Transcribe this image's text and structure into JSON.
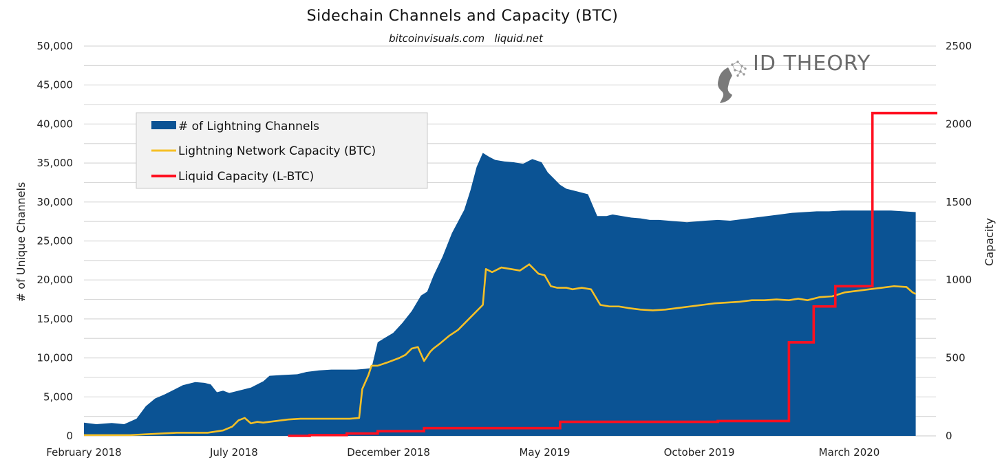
{
  "chart_data": {
    "type": "area",
    "title": "Sidechain Channels and Capacity (BTC)",
    "subtitle": "bitcoinvisuals.com   liquid.net",
    "watermark": "ID THEORY",
    "ylabel": "# of Unique Channels",
    "y2label": "Capacity",
    "ylim": [
      0,
      50000
    ],
    "y2lim": [
      0,
      2500
    ],
    "grid": true,
    "legend_placement": "top-left",
    "x_axis": {
      "unit": "months since February 2018",
      "range": [
        0,
        28.4
      ],
      "ticks": [
        {
          "label": "February 2018",
          "value": 0
        },
        {
          "label": "July 2018",
          "value": 4.85
        },
        {
          "label": "December 2018",
          "value": 9.85
        },
        {
          "label": "May 2019",
          "value": 14.9
        },
        {
          "label": "October 2019",
          "value": 19.9
        },
        {
          "label": "March 2020",
          "value": 24.75
        }
      ]
    },
    "y_ticks": [
      "0",
      "5,000",
      "10,000",
      "15,000",
      "20,000",
      "25,000",
      "30,000",
      "35,000",
      "40,000",
      "45,000",
      "50,000"
    ],
    "y_tick_values": [
      0,
      5000,
      10000,
      15000,
      20000,
      25000,
      30000,
      35000,
      40000,
      45000,
      50000
    ],
    "y2_ticks": [
      "0",
      "500",
      "1000",
      "1500",
      "2000",
      "2500"
    ],
    "y2_tick_values": [
      0,
      500,
      1000,
      1500,
      2000,
      2500
    ],
    "colors": {
      "channels": "#0b5394",
      "ln_capacity": "#f6c026",
      "liquid_capacity": "#ff1020",
      "grid": "#d9d9d9"
    },
    "series": [
      {
        "name": "# of Lightning Channels",
        "axis": "left",
        "type": "area",
        "x": [
          0,
          0.4,
          0.9,
          1.3,
          1.7,
          2.0,
          2.3,
          2.6,
          2.9,
          3.2,
          3.6,
          3.9,
          4.1,
          4.3,
          4.5,
          4.7,
          5.0,
          5.4,
          5.8,
          6.0,
          6.4,
          6.9,
          7.2,
          7.6,
          8.0,
          8.4,
          8.8,
          9.1,
          9.3,
          9.5,
          9.7,
          10.0,
          10.3,
          10.6,
          10.9,
          11.1,
          11.3,
          11.6,
          11.9,
          12.1,
          12.3,
          12.5,
          12.7,
          12.9,
          13.1,
          13.3,
          13.6,
          13.9,
          14.2,
          14.5,
          14.8,
          15.0,
          15.2,
          15.4,
          15.6,
          15.8,
          16.0,
          16.3,
          16.6,
          16.9,
          17.1,
          17.4,
          17.7,
          18.0,
          18.3,
          18.6,
          18.9,
          19.2,
          19.5,
          19.8,
          20.1,
          20.5,
          20.9,
          21.3,
          21.7,
          22.1,
          22.5,
          22.9,
          23.3,
          23.7,
          24.1,
          24.5,
          24.9,
          25.3,
          25.7,
          26.1,
          26.5,
          26.9
        ],
        "values": [
          1700,
          1500,
          1650,
          1500,
          2200,
          3800,
          4800,
          5300,
          5900,
          6500,
          6900,
          6800,
          6600,
          5600,
          5800,
          5500,
          5800,
          6200,
          7000,
          7700,
          7800,
          7900,
          8200,
          8400,
          8500,
          8500,
          8500,
          8600,
          8700,
          12000,
          12500,
          13200,
          14500,
          16000,
          18000,
          18500,
          20500,
          23000,
          26000,
          27500,
          29000,
          31500,
          34500,
          36300,
          35800,
          35400,
          35200,
          35100,
          34900,
          35500,
          35100,
          33800,
          33000,
          32200,
          31700,
          31500,
          31300,
          31000,
          28200,
          28200,
          28400,
          28200,
          28000,
          27900,
          27700,
          27700,
          27600,
          27500,
          27400,
          27500,
          27600,
          27700,
          27600,
          27800,
          28000,
          28200,
          28400,
          28600,
          28700,
          28800,
          28800,
          28900,
          28900,
          28900,
          28900,
          28900,
          28800,
          28700
        ]
      },
      {
        "name": "Lightning Network Capacity (BTC)",
        "axis": "right",
        "type": "line",
        "x": [
          0,
          1.5,
          2.0,
          2.5,
          3.0,
          3.5,
          4.0,
          4.5,
          4.8,
          5.0,
          5.2,
          5.4,
          5.6,
          5.8,
          6.2,
          6.6,
          7.0,
          7.4,
          7.8,
          8.2,
          8.6,
          8.9,
          9.0,
          9.2,
          9.3,
          9.5,
          9.8,
          10.2,
          10.4,
          10.6,
          10.8,
          11.0,
          11.2,
          11.3,
          11.5,
          11.8,
          12.1,
          12.4,
          12.7,
          12.9,
          13.0,
          13.2,
          13.5,
          13.8,
          14.1,
          14.4,
          14.7,
          14.9,
          15.1,
          15.3,
          15.6,
          15.8,
          16.1,
          16.4,
          16.7,
          17.0,
          17.3,
          17.6,
          18.0,
          18.4,
          18.8,
          19.2,
          19.6,
          20.0,
          20.4,
          20.8,
          21.2,
          21.6,
          22.0,
          22.4,
          22.8,
          23.1,
          23.4,
          23.8,
          24.2,
          24.6,
          25.0,
          25.4,
          25.8,
          26.2,
          26.6,
          26.8,
          26.9
        ],
        "values": [
          5,
          5,
          10,
          15,
          20,
          20,
          20,
          35,
          60,
          100,
          115,
          80,
          90,
          85,
          95,
          105,
          110,
          110,
          110,
          110,
          110,
          115,
          300,
          390,
          450,
          450,
          470,
          500,
          520,
          560,
          570,
          480,
          540,
          560,
          590,
          640,
          680,
          740,
          800,
          840,
          1070,
          1050,
          1080,
          1070,
          1060,
          1100,
          1040,
          1030,
          960,
          950,
          950,
          940,
          950,
          940,
          840,
          830,
          830,
          820,
          810,
          805,
          810,
          820,
          830,
          840,
          850,
          855,
          860,
          870,
          870,
          875,
          870,
          880,
          870,
          890,
          895,
          920,
          930,
          940,
          950,
          960,
          955,
          920,
          910
        ]
      },
      {
        "name": "Liquid Capacity (L-BTC)",
        "axis": "right",
        "type": "step",
        "x": [
          6.6,
          7.3,
          8.5,
          9.5,
          11.0,
          15.4,
          20.5,
          22.8,
          23.6,
          24.3,
          25.5,
          26.6,
          27.6
        ],
        "values": [
          0,
          5,
          15,
          30,
          50,
          90,
          95,
          600,
          830,
          960,
          2070,
          2070,
          2070
        ]
      }
    ]
  }
}
